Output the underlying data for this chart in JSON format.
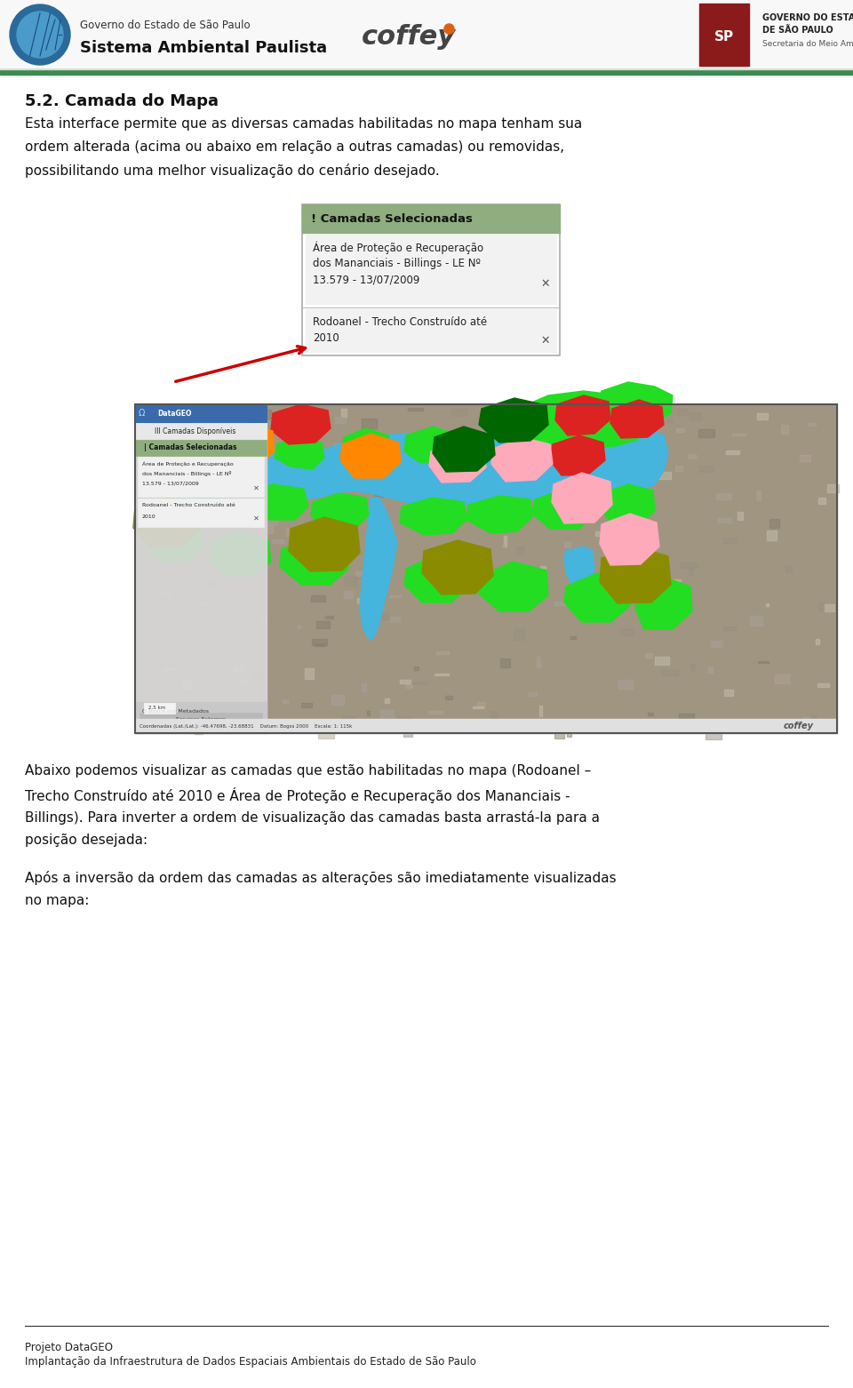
{
  "title": "5.2. Camada do Mapa",
  "body_text_1_lines": [
    "Esta interface permite que as diversas camadas habilitadas no mapa tenham sua",
    "ordem alterada (acima ou abaixo em relação a outras camadas) ou removidas,",
    "possibilitando uma melhor visualização do cenário desejado."
  ],
  "body_text_2_lines": [
    "Abaixo podemos visualizar as camadas que estão habilitadas no mapa (Rodoanel –",
    "Trecho Construído até 2010 e Área de Proteção e Recuperação dos Mananciais -",
    "Billings). Para inverter a ordem de visualização das camadas basta arrastá-la para a",
    "posição desejada:"
  ],
  "body_text_3_lines": [
    "Após a inversão da ordem das camadas as alterações são imediatamente visualizadas",
    "no mapa:"
  ],
  "footer_text_1": "Projeto DataGEO",
  "footer_text_2": "Implantação da Infraestrutura de Dados Espaciais Ambientais do Estado de São Paulo",
  "header_line1": "Governo do Estado de São Paulo",
  "header_line2": "Sistema Ambiental Paulista",
  "header_coffey": "coffey",
  "header_gov_line1": "GOVERNO DO ESTADO",
  "header_gov_line2": "DE SÃO PAULO",
  "header_gov_line3": "Secretaria do Meio Ambiente",
  "green_bar_color": "#3a8c4f",
  "background_color": "#ffffff",
  "camadas_box_title": "! Camadas Selecionadas",
  "camada_1_line1": "Área de Proteção e Recuperação",
  "camada_1_line2": "dos Mananciais - Billings - LE Nº",
  "camada_1_line3": "13.579 - 13/07/2009",
  "camada_2_line1": "Rodoanel - Trecho Construído até",
  "camada_2_line2": "2010",
  "camadas_title_bg": "#8fad7f",
  "camadas_box_bg": "#f0f0f0",
  "camadas_entry_bg": "#e8e8e8",
  "figure_width": 9.6,
  "figure_height": 15.62,
  "dpi": 100
}
